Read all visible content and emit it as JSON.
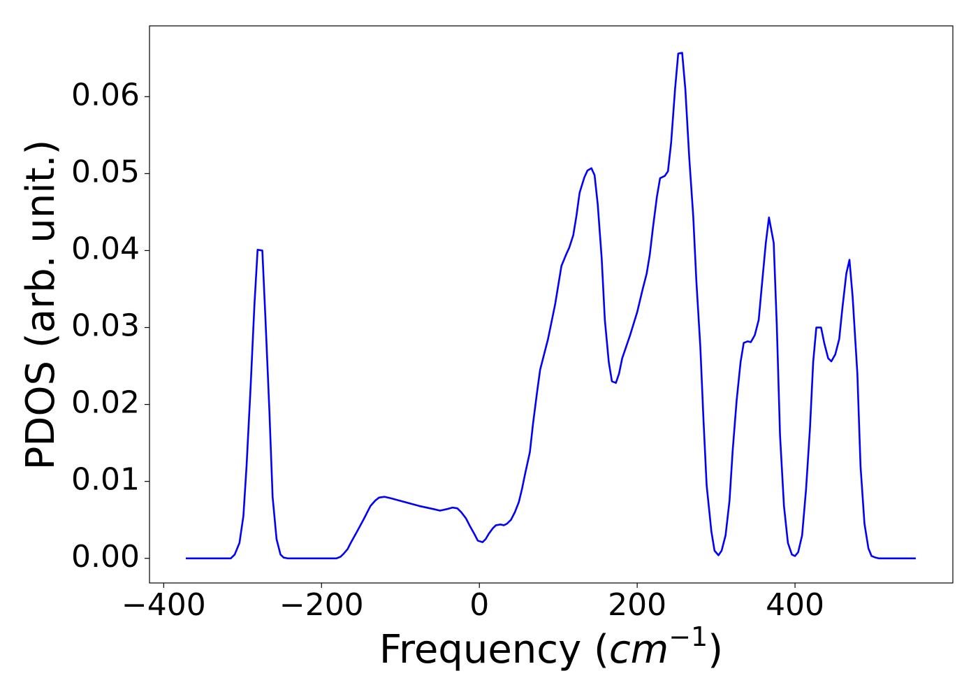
{
  "chart_data": {
    "type": "line",
    "xlabel": [
      "Frequency (",
      "cm",
      "−1",
      ")"
    ],
    "ylabel": "PDOS (arb. unit.)",
    "x": [
      -372,
      -315,
      -310,
      -304,
      -299,
      -295,
      -290,
      -285,
      -281,
      -275,
      -271,
      -266,
      -262,
      -257,
      -252,
      -248,
      -243,
      -181,
      -176,
      -172,
      -167,
      -163,
      -156,
      -147,
      -138,
      -132,
      -127,
      -120,
      -112,
      -94,
      -76,
      -58,
      -50,
      -41,
      -34,
      -28,
      -23,
      -17,
      -12,
      -6,
      -2,
      4,
      8,
      12,
      17,
      21,
      27,
      31,
      35,
      40,
      45,
      50,
      54,
      58,
      64,
      68,
      73,
      77,
      82,
      87,
      91,
      96,
      100,
      104,
      110,
      114,
      119,
      123,
      127,
      133,
      137,
      142,
      146,
      150,
      155,
      159,
      164,
      168,
      173,
      177,
      181,
      186,
      191,
      200,
      207,
      212,
      216,
      220,
      225,
      229,
      235,
      239,
      243,
      248,
      252,
      257,
      261,
      266,
      271,
      275,
      280,
      284,
      288,
      294,
      298,
      303,
      307,
      312,
      317,
      321,
      326,
      331,
      335,
      340,
      344,
      349,
      354,
      358,
      363,
      367,
      373,
      377,
      381,
      386,
      391,
      396,
      400,
      404,
      409,
      414,
      419,
      423,
      427,
      433,
      437,
      442,
      446,
      451,
      456,
      460,
      465,
      469,
      473,
      479,
      483,
      488,
      493,
      497,
      502,
      506,
      553
    ],
    "series": [
      {
        "name": "PDOS",
        "color": "#0000ff",
        "values": [
          0,
          0,
          0.0005,
          0.002,
          0.0055,
          0.012,
          0.022,
          0.033,
          0.0401,
          0.04,
          0.031,
          0.019,
          0.008,
          0.0025,
          0.0005,
          0.0001,
          0,
          0,
          0.0002,
          0.0006,
          0.0012,
          0.002,
          0.0033,
          0.005,
          0.0068,
          0.0075,
          0.0079,
          0.008,
          0.0078,
          0.0073,
          0.0068,
          0.0064,
          0.0062,
          0.0064,
          0.0066,
          0.0065,
          0.006,
          0.0052,
          0.0042,
          0.0031,
          0.0023,
          0.0021,
          0.0025,
          0.0032,
          0.0039,
          0.0043,
          0.0044,
          0.0043,
          0.0045,
          0.005,
          0.006,
          0.0073,
          0.009,
          0.011,
          0.0138,
          0.0175,
          0.0215,
          0.0245,
          0.0265,
          0.0285,
          0.0305,
          0.033,
          0.0355,
          0.038,
          0.0395,
          0.0404,
          0.042,
          0.0445,
          0.0475,
          0.0495,
          0.0504,
          0.0507,
          0.0498,
          0.046,
          0.039,
          0.031,
          0.0255,
          0.023,
          0.0228,
          0.024,
          0.026,
          0.0275,
          0.029,
          0.032,
          0.035,
          0.037,
          0.0395,
          0.043,
          0.047,
          0.0494,
          0.0497,
          0.0503,
          0.054,
          0.061,
          0.0656,
          0.0657,
          0.061,
          0.052,
          0.0445,
          0.036,
          0.0275,
          0.018,
          0.0095,
          0.0035,
          0.001,
          0.0004,
          0.001,
          0.003,
          0.0075,
          0.014,
          0.0205,
          0.0255,
          0.028,
          0.0282,
          0.0281,
          0.029,
          0.031,
          0.0355,
          0.041,
          0.0443,
          0.041,
          0.03,
          0.016,
          0.0068,
          0.002,
          0.0005,
          0.0003,
          0.0008,
          0.003,
          0.009,
          0.017,
          0.0255,
          0.03,
          0.03,
          0.028,
          0.026,
          0.0256,
          0.0265,
          0.0285,
          0.0325,
          0.037,
          0.0388,
          0.034,
          0.024,
          0.012,
          0.0045,
          0.0013,
          0.0003,
          0.0001,
          0,
          0
        ]
      }
    ],
    "xlim": [
      -418,
      600
    ],
    "ylim": [
      -0.0032,
      0.0692
    ],
    "xticks": [
      {
        "value": -400,
        "label": "−400"
      },
      {
        "value": -200,
        "label": "−200"
      },
      0,
      200,
      400
    ],
    "yticks": [
      {
        "value": 0,
        "label": "0.00"
      },
      {
        "value": 0.01,
        "label": "0.01"
      },
      {
        "value": 0.02,
        "label": "0.02"
      },
      {
        "value": 0.03,
        "label": "0.03"
      },
      {
        "value": 0.04,
        "label": "0.04"
      },
      {
        "value": 0.05,
        "label": "0.05"
      },
      {
        "value": 0.06,
        "label": "0.06"
      }
    ],
    "grid": false
  }
}
